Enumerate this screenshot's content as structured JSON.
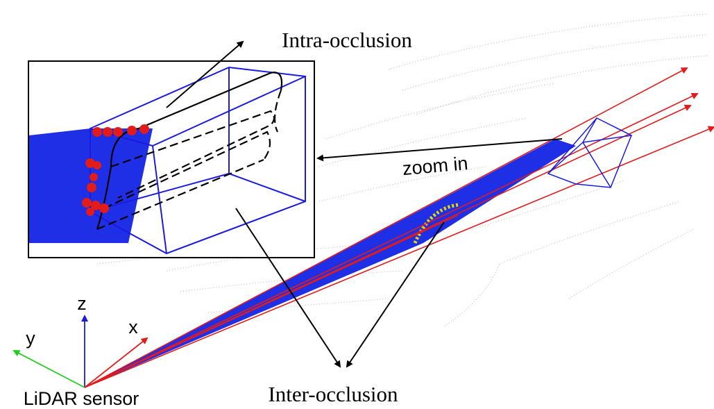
{
  "annotations": {
    "intra_occlusion": "Intra-occlusion",
    "zoom_in": "zoom in",
    "inter_occlusion": "Inter-occlusion",
    "sensor": "LiDAR sensor"
  },
  "axes": {
    "z": "z",
    "x": "x",
    "y": "y"
  }
}
